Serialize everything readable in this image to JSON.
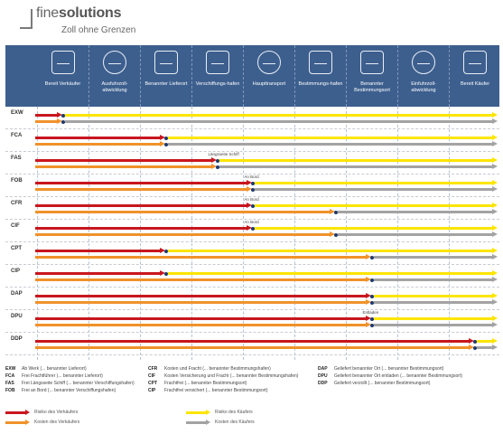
{
  "logo": {
    "name_light": "fine",
    "name_bold": "solutions",
    "tagline": "Zoll ohne Grenzen"
  },
  "colors": {
    "red": "#c8161d",
    "orange": "#f0922a",
    "yellow": "#fce500",
    "grey": "#a3a3a3",
    "header": "#3d5f8e",
    "dot": "#1e3a6e"
  },
  "stages": [
    {
      "label": "Bereit Verkäufer",
      "icon": "factory-icon"
    },
    {
      "label": "Ausfuhrzoll-abwicklung",
      "icon": "customs-export-icon"
    },
    {
      "label": "Benannter Lieferort",
      "icon": "handover-icon"
    },
    {
      "label": "Verschiffungs-hafen",
      "icon": "crane-icon"
    },
    {
      "label": "Haupttransport",
      "icon": "ship-icon"
    },
    {
      "label": "Bestimmungs-hafen",
      "icon": "port-crane-icon"
    },
    {
      "label": "Benannter Bestimmungsort",
      "icon": "destination-icon"
    },
    {
      "label": "Einfuhrzoll-abwicklung",
      "icon": "customs-import-icon"
    },
    {
      "label": "Bereit Käufer",
      "icon": "warehouse-icon"
    }
  ],
  "rows": [
    {
      "code": "EXW",
      "risk_split": 0.5,
      "cost_split": 0.5,
      "note": ""
    },
    {
      "code": "FCA",
      "risk_split": 2.5,
      "cost_split": 2.5,
      "note": ""
    },
    {
      "code": "FAS",
      "risk_split": 3.5,
      "cost_split": 3.5,
      "note": "Längsseite Schiff"
    },
    {
      "code": "FOB",
      "risk_split": 4.2,
      "cost_split": 4.2,
      "note": "An Bord"
    },
    {
      "code": "CFR",
      "risk_split": 4.2,
      "cost_split": 5.8,
      "note": "An Bord"
    },
    {
      "code": "CIF",
      "risk_split": 4.2,
      "cost_split": 5.8,
      "note": "An Bord"
    },
    {
      "code": "CPT",
      "risk_split": 2.5,
      "cost_split": 6.5,
      "note": ""
    },
    {
      "code": "CIP",
      "risk_split": 2.5,
      "cost_split": 6.5,
      "note": ""
    },
    {
      "code": "DAP",
      "risk_split": 6.5,
      "cost_split": 6.5,
      "note": ""
    },
    {
      "code": "DPU",
      "risk_split": 6.5,
      "cost_split": 6.5,
      "note": "Entladen"
    },
    {
      "code": "DDP",
      "risk_split": 8.5,
      "cost_split": 8.5,
      "note": ""
    }
  ],
  "legend_columns": [
    [
      {
        "code": "EXW",
        "text": "Ab Werk (... benannter Lieferort)"
      },
      {
        "code": "FCA",
        "text": "Frei Frachtführer (... benannter Lieferort)"
      },
      {
        "code": "FAS",
        "text": "Frei Längsseite Schiff (... benannter Verschiffungshafen)"
      },
      {
        "code": "FOB",
        "text": "Frei an Bord (... benannter Verschiffungshafen)"
      }
    ],
    [
      {
        "code": "CFR",
        "text": "Kosten und Fracht (... benannter Bestimmungshafen)"
      },
      {
        "code": "CIF",
        "text": "Kosten Versicherung und Fracht (... benannter Bestimmungshafen)"
      },
      {
        "code": "CPT",
        "text": "Frachtfrei (... benannter Bestimmungsort)"
      },
      {
        "code": "CIP",
        "text": "Frachtfrei versichert (... benannter Bestimmungsort)"
      }
    ],
    [
      {
        "code": "DAP",
        "text": "Geliefert benannter Ort (... benannter Bestimmungsort)"
      },
      {
        "code": "DPU",
        "text": "Geliefert benannter Ort entladen (... benannter Bestimmungsort)"
      },
      {
        "code": "DDP",
        "text": "Geliefert verzollt (... benannter Bestimmungsort)"
      }
    ]
  ],
  "color_key": [
    {
      "color": "red",
      "label": "Risiko des Verkäufers"
    },
    {
      "color": "orange",
      "label": "Kosten des Verkäufers"
    },
    {
      "color": "yellow",
      "label": "Risiko des Käufers"
    },
    {
      "color": "grey",
      "label": "Kosten des Käufers"
    }
  ]
}
